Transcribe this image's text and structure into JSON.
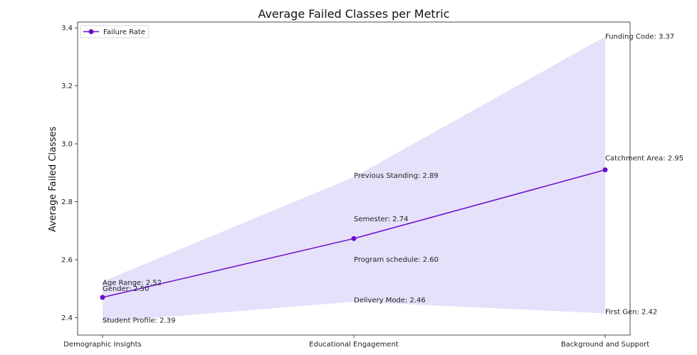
{
  "chart_data": {
    "type": "line",
    "title": "Average Failed Classes per Metric",
    "xlabel": "",
    "ylabel": "Average Failed Classes",
    "categories": [
      "Demographic Insights",
      "Educational Engagement",
      "Background and Support"
    ],
    "ylim": [
      2.34,
      3.42
    ],
    "yticks": [
      2.4,
      2.6,
      2.8,
      3.0,
      3.2,
      3.4
    ],
    "ytick_labels": [
      "2.4",
      "2.6",
      "2.8",
      "3.0",
      "3.2",
      "3.4"
    ],
    "series": [
      {
        "name": "Failure Rate",
        "values": [
          2.47,
          2.673,
          2.91
        ],
        "color": "#6a0dcc"
      }
    ],
    "band": {
      "lower": [
        2.385,
        2.455,
        2.415
      ],
      "upper": [
        2.525,
        2.885,
        3.37
      ],
      "color": "#e6e1fa"
    },
    "legend": {
      "position": "top-left"
    },
    "grid": false,
    "annotations": [
      {
        "category": "Demographic Insights",
        "value": 2.52,
        "text": "Age Range: 2.52"
      },
      {
        "category": "Demographic Insights",
        "value": 2.5,
        "text": "Gender: 2.50"
      },
      {
        "category": "Demographic Insights",
        "value": 2.39,
        "text": "Student Profile: 2.39"
      },
      {
        "category": "Educational Engagement",
        "value": 2.89,
        "text": "Previous Standing: 2.89"
      },
      {
        "category": "Educational Engagement",
        "value": 2.74,
        "text": "Semester: 2.74"
      },
      {
        "category": "Educational Engagement",
        "value": 2.6,
        "text": "Program schedule: 2.60"
      },
      {
        "category": "Educational Engagement",
        "value": 2.46,
        "text": "Delivery Mode: 2.46"
      },
      {
        "category": "Background and Support",
        "value": 3.37,
        "text": "Funding Code: 3.37"
      },
      {
        "category": "Background and Support",
        "value": 2.95,
        "text": "Catchment Area: 2.95"
      },
      {
        "category": "Background and Support",
        "value": 2.42,
        "text": "First Gen: 2.42"
      }
    ]
  }
}
